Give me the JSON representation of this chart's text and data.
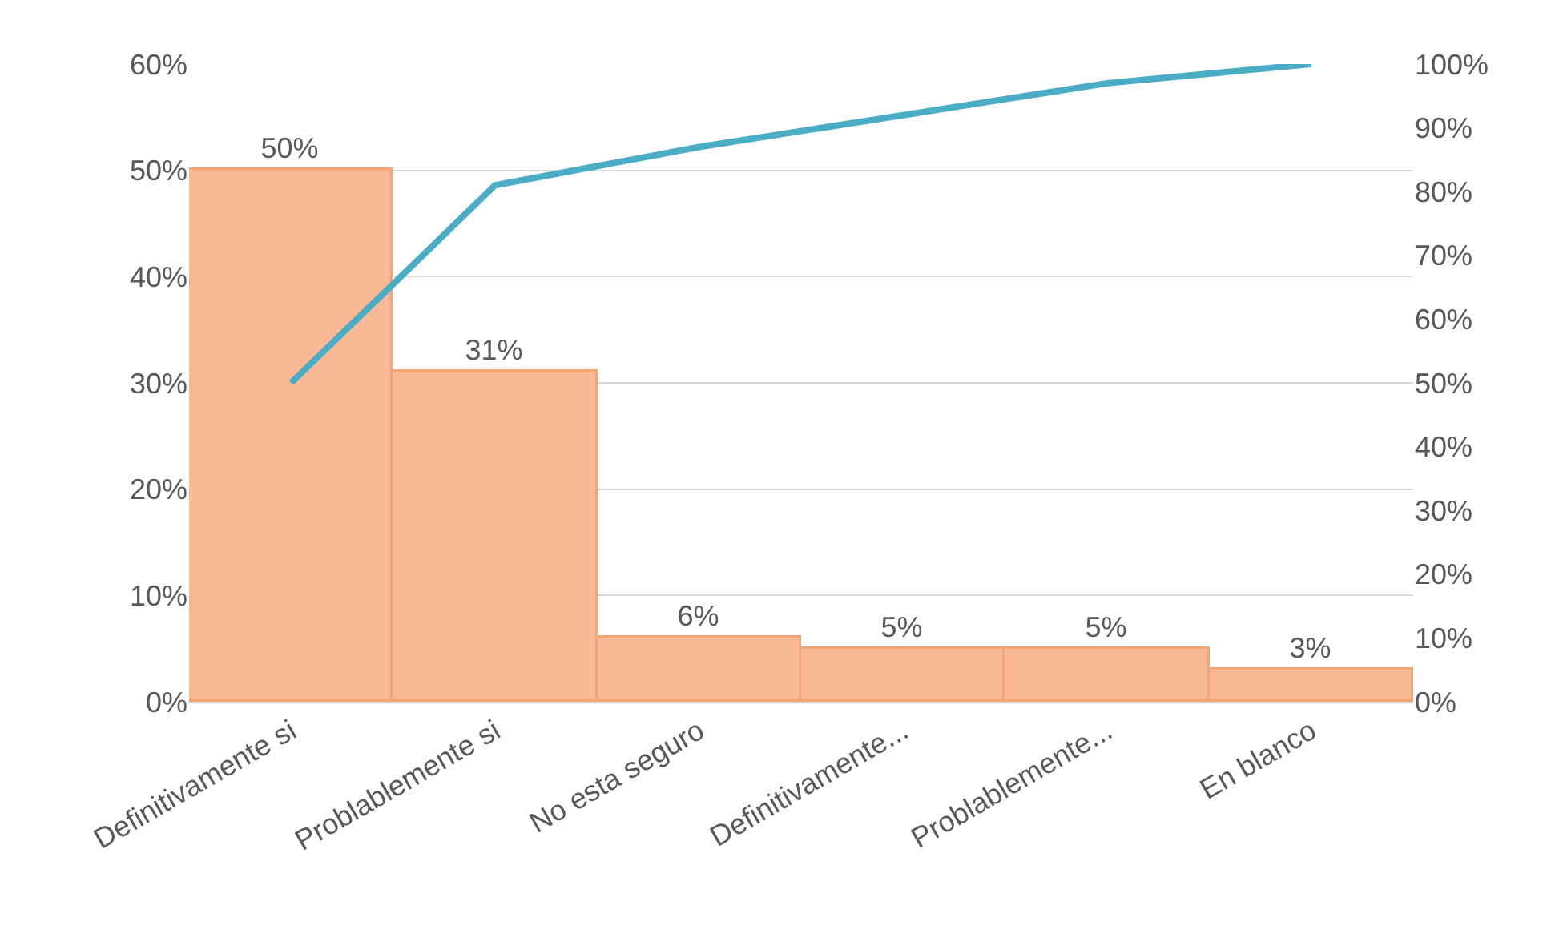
{
  "chart_data": {
    "type": "bar",
    "categories": [
      "Definitivamente si",
      "Problablemente si",
      "No esta seguro",
      "Definitivamente...",
      "Problablemente...",
      "En blanco"
    ],
    "series": [
      {
        "color": "#f9b995",
        "values": [
          50,
          31,
          6,
          5,
          5,
          3
        ],
        "value_labels": [
          "50%",
          "31%",
          "6%",
          "5%",
          "5%",
          "3%"
        ]
      },
      {
        "type": "line",
        "axis": "y2",
        "color": "#4bacc6",
        "values": [
          50,
          81,
          87,
          92,
          97,
          100
        ]
      }
    ],
    "ylim": [
      0,
      60
    ],
    "yticks": [
      {
        "value": 0,
        "label": "0%"
      },
      {
        "value": 10,
        "label": "10%"
      },
      {
        "value": 20,
        "label": "20%"
      },
      {
        "value": 30,
        "label": "30%"
      },
      {
        "value": 40,
        "label": "40%"
      },
      {
        "value": 50,
        "label": "50%"
      },
      {
        "value": 60,
        "label": "60%"
      }
    ],
    "y2lim": [
      0,
      100
    ],
    "y2ticks": [
      {
        "value": 0,
        "label": "0%"
      },
      {
        "value": 10,
        "label": "10%"
      },
      {
        "value": 20,
        "label": "20%"
      },
      {
        "value": 30,
        "label": "30%"
      },
      {
        "value": 40,
        "label": "40%"
      },
      {
        "value": 50,
        "label": "50%"
      },
      {
        "value": 60,
        "label": "60%"
      },
      {
        "value": 70,
        "label": "70%"
      },
      {
        "value": 80,
        "label": "80%"
      },
      {
        "value": 90,
        "label": "90%"
      },
      {
        "value": 100,
        "label": "100%"
      }
    ],
    "grid": "y",
    "marker": "none",
    "line_style": "solid"
  }
}
